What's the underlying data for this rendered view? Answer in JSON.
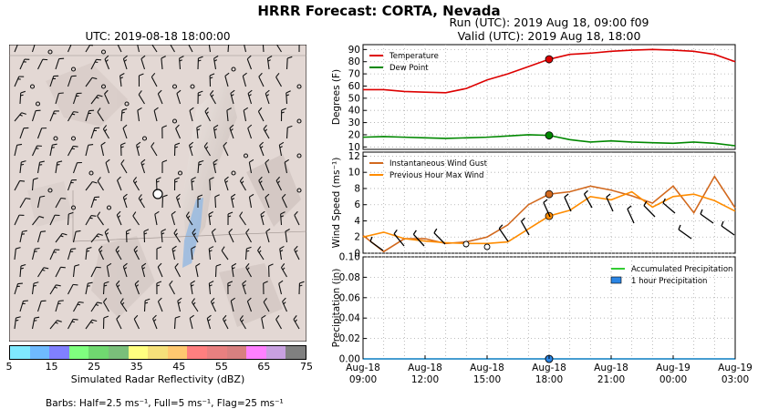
{
  "main_title": "HRRR Forecast: CORTA, Nevada",
  "map": {
    "title": "UTC: 2019-08-18 18:00:00",
    "colorbar": {
      "label": "Simulated Radar Reflectivity (dBZ)",
      "ticks": [
        "5",
        "15",
        "25",
        "35",
        "45",
        "55",
        "65",
        "75"
      ],
      "colors": [
        "#7fe9ff",
        "#6fbaff",
        "#8080ff",
        "#7fff7f",
        "#70d870",
        "#7abf7a",
        "#ffff80",
        "#f5e07a",
        "#ffc870",
        "#ff7f7f",
        "#e88080",
        "#d88080",
        "#ff80ff",
        "#c8a0e0",
        "#808080"
      ]
    },
    "barb_note": "Barbs: Half=2.5 ms⁻¹, Full=5 ms⁻¹, Flag=25 ms⁻¹"
  },
  "run_info": {
    "run": "Run (UTC): 2019 Aug 18, 09:00 f09",
    "valid": "Valid (UTC): 2019 Aug 18, 18:00"
  },
  "chart_data": [
    {
      "type": "line",
      "ylabel": "Degrees (F)",
      "ylim": [
        8,
        94
      ],
      "yticks": [
        10,
        20,
        30,
        40,
        50,
        60,
        70,
        80,
        90
      ],
      "legend_position": "top-left",
      "x": [
        "09:00",
        "10:00",
        "11:00",
        "12:00",
        "13:00",
        "14:00",
        "15:00",
        "16:00",
        "17:00",
        "18:00",
        "19:00",
        "20:00",
        "21:00",
        "22:00",
        "23:00",
        "00:00",
        "01:00",
        "02:00",
        "03:00"
      ],
      "series": [
        {
          "name": "Temperature",
          "color": "#dd0000",
          "values": [
            57,
            57,
            55.5,
            55,
            54.5,
            58,
            65,
            70,
            76,
            82,
            86,
            87,
            88.5,
            89.5,
            90,
            89.5,
            88.5,
            86,
            80
          ]
        },
        {
          "name": "Dew Point",
          "color": "#008800",
          "values": [
            18,
            18.5,
            18,
            17.5,
            17,
            17.5,
            18,
            19,
            20,
            19.5,
            16,
            14,
            15,
            14,
            13.5,
            13,
            14,
            13,
            11
          ]
        }
      ],
      "marker_index": 9,
      "grid": true
    },
    {
      "type": "line",
      "ylabel": "Wind Speed (ms⁻¹)",
      "ylim": [
        0,
        12.5
      ],
      "yticks": [
        0,
        2,
        4,
        6,
        8,
        10,
        12
      ],
      "legend_position": "top-left",
      "x": [
        "09:00",
        "10:00",
        "11:00",
        "12:00",
        "13:00",
        "14:00",
        "15:00",
        "16:00",
        "17:00",
        "18:00",
        "19:00",
        "20:00",
        "21:00",
        "22:00",
        "23:00",
        "00:00",
        "01:00",
        "02:00",
        "03:00"
      ],
      "series": [
        {
          "name": "Instantaneous Wind Gust",
          "color": "#d2691e",
          "values": [
            2.2,
            0.2,
            1.8,
            1.8,
            1.2,
            1.4,
            2,
            3.5,
            6,
            7.3,
            7.6,
            8.3,
            7.8,
            7.1,
            6.2,
            8.3,
            5,
            9.5,
            5.6
          ]
        },
        {
          "name": "Previous Hour Max Wind",
          "color": "#ff8c00",
          "values": [
            2,
            2.6,
            1.8,
            1.5,
            1.3,
            1.2,
            1.2,
            1.4,
            3,
            4.6,
            5.3,
            7,
            6.6,
            7.6,
            5.7,
            7,
            7.3,
            6.5,
            5.2
          ]
        }
      ],
      "marker_index": 9,
      "grid": true
    },
    {
      "type": "line",
      "ylabel": "Precipitation (in)",
      "ylim": [
        0,
        0.1
      ],
      "yticks": [
        0.0,
        0.02,
        0.04,
        0.06,
        0.08,
        0.1
      ],
      "legend_position": "top-right",
      "x": [
        "09:00",
        "10:00",
        "11:00",
        "12:00",
        "13:00",
        "14:00",
        "15:00",
        "16:00",
        "17:00",
        "18:00",
        "19:00",
        "20:00",
        "21:00",
        "22:00",
        "23:00",
        "00:00",
        "01:00",
        "02:00",
        "03:00"
      ],
      "series": [
        {
          "name": "Accumulated Precipitation",
          "color": "#33cc33",
          "values": [
            0,
            0,
            0,
            0,
            0,
            0,
            0,
            0,
            0,
            0,
            0,
            0,
            0,
            0,
            0,
            0,
            0,
            0,
            0
          ]
        },
        {
          "name": "1 hour Precipitation",
          "color": "#2b85e4",
          "values": [
            0,
            0,
            0,
            0,
            0,
            0,
            0,
            0,
            0,
            0,
            0,
            0,
            0,
            0,
            0,
            0,
            0,
            0,
            0
          ]
        }
      ],
      "marker_index": 9,
      "xtick_labels": [
        [
          "Aug-18",
          "09:00"
        ],
        [
          "Aug-18",
          "12:00"
        ],
        [
          "Aug-18",
          "15:00"
        ],
        [
          "Aug-18",
          "18:00"
        ],
        [
          "Aug-18",
          "21:00"
        ],
        [
          "Aug-19",
          "00:00"
        ],
        [
          "Aug-19",
          "03:00"
        ]
      ],
      "grid": true
    }
  ]
}
